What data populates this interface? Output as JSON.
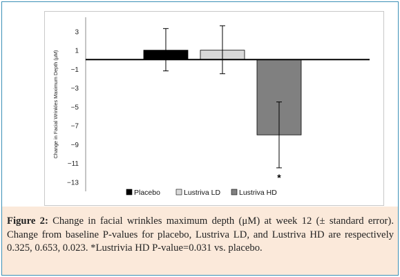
{
  "chart_data": {
    "type": "bar",
    "title": "",
    "xlabel": "",
    "ylabel": "Change in Facial Wrinkles Maximum Depth (µM)",
    "ylim": [
      -14,
      4.5
    ],
    "yticks": [
      3,
      1,
      -1,
      -3,
      -5,
      -7,
      -9,
      -11,
      -13
    ],
    "grid": false,
    "legend_position": "bottom",
    "series": [
      {
        "name": "Placebo",
        "value": 1.0,
        "error_low": -1.2,
        "error_high": 3.3,
        "color": "#000000"
      },
      {
        "name": "Lustriva LD",
        "value": 1.0,
        "error_low": -1.5,
        "error_high": 3.6,
        "color": "#d9d9d9"
      },
      {
        "name": "Lustriva HD",
        "value": -8.0,
        "error_low": -11.5,
        "error_high": -4.5,
        "color": "#808080"
      }
    ],
    "annotations": [
      {
        "text": "*",
        "series": "Lustriva HD"
      }
    ]
  },
  "caption": {
    "label": "Figure 2:",
    "text": " Change in facial wrinkles maximum depth (μM) at week 12 (± standard error). Change from baseline P-values for placebo, Lustriva LD, and Lustriva HD are respectively 0.325, 0.653, 0.023. *Lustrivia HD P-value=0.031 vs. placebo."
  },
  "colors": {
    "frame_border": "#3a8fb5",
    "caption_background": "#fbe9da"
  }
}
